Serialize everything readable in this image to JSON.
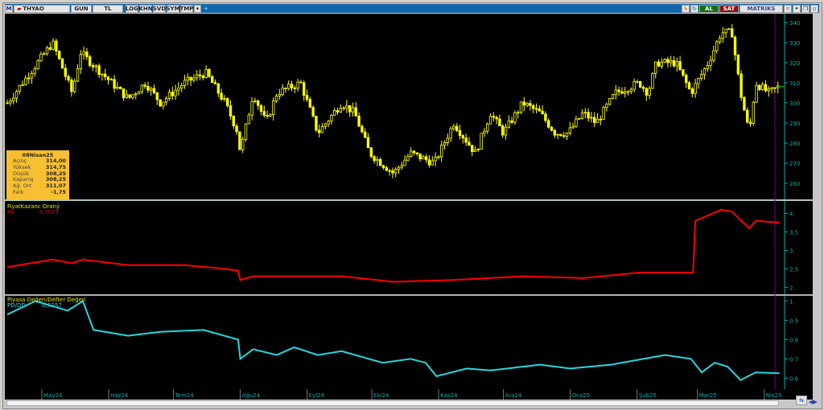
{
  "toolbar": {
    "logo": "M",
    "symbol": "THYAO",
    "period": "GUN",
    "currency": "TL",
    "buttons": [
      "LOG",
      "KHN",
      "SVD",
      "SYM",
      "TMP"
    ],
    "buy": "AL",
    "sell": "SAT",
    "brand": "MATRIKS"
  },
  "info_box": {
    "date": "08Nisan25",
    "rows": [
      {
        "label": "Açılış",
        "value": "314,00"
      },
      {
        "label": "Yüksek",
        "value": "314,75"
      },
      {
        "label": "Düşük",
        "value": "308,25"
      },
      {
        "label": "Kapanış",
        "value": "308,25"
      },
      {
        "label": "Ağ. Ort",
        "value": "311,07"
      },
      {
        "label": "Fark",
        "value": "-1,75"
      }
    ]
  },
  "colors": {
    "candle": "#ffff00",
    "fk": "#ff0000",
    "pddd": "#22d8e0",
    "axis": "#00b0b0",
    "background": "#000000"
  },
  "chart_data": [
    {
      "type": "candlestick",
      "symbol": "THYAO",
      "yticks": [
        260,
        270,
        280,
        290,
        300,
        310,
        320,
        330,
        340
      ],
      "ylim": [
        254,
        345
      ],
      "closes": [
        [
          "2024-04-15",
          300
        ],
        [
          "2024-05-06",
          330
        ],
        [
          "2024-05-15",
          305
        ],
        [
          "2024-05-19",
          325
        ],
        [
          "2024-06-10",
          302
        ],
        [
          "2024-06-18",
          310
        ],
        [
          "2024-06-25",
          300
        ],
        [
          "2024-07-06",
          310
        ],
        [
          "2024-07-16",
          315
        ],
        [
          "2024-07-25",
          300
        ],
        [
          "2024-07-31",
          285
        ],
        [
          "2024-08-01",
          275
        ],
        [
          "2024-08-07",
          305
        ],
        [
          "2024-08-13",
          290
        ],
        [
          "2024-08-18",
          305
        ],
        [
          "2024-08-29",
          310
        ],
        [
          "2024-09-06",
          285
        ],
        [
          "2024-09-17",
          300
        ],
        [
          "2024-09-23",
          295
        ],
        [
          "2024-09-30",
          275
        ],
        [
          "2024-10-11",
          265
        ],
        [
          "2024-10-19",
          275
        ],
        [
          "2024-10-30",
          270
        ],
        [
          "2024-11-08",
          290
        ],
        [
          "2024-11-18",
          275
        ],
        [
          "2024-11-25",
          295
        ],
        [
          "2024-12-01",
          285
        ],
        [
          "2024-12-10",
          300
        ],
        [
          "2024-12-18",
          295
        ],
        [
          "2024-12-25",
          285
        ],
        [
          "2024-12-31",
          285
        ],
        [
          "2025-01-07",
          295
        ],
        [
          "2025-01-13",
          290
        ],
        [
          "2025-01-22",
          305
        ],
        [
          "2025-02-02",
          310
        ],
        [
          "2025-02-06",
          305
        ],
        [
          "2025-02-10",
          320
        ],
        [
          "2025-02-19",
          320
        ],
        [
          "2025-02-26",
          305
        ],
        [
          "2025-03-06",
          320
        ],
        [
          "2025-03-12",
          335
        ],
        [
          "2025-03-17",
          335
        ],
        [
          "2025-03-21",
          305
        ],
        [
          "2025-03-25",
          285
        ],
        [
          "2025-03-28",
          310
        ],
        [
          "2025-04-03",
          305
        ],
        [
          "2025-04-08",
          308.25
        ]
      ]
    },
    {
      "type": "line",
      "title": "FiyatKazanc Oraný",
      "series_label": "FK",
      "last_value": ":3,7519",
      "yticks": [
        "2.",
        "2,5",
        "3.",
        "3,5",
        "4."
      ],
      "ytick_values": [
        2,
        2.5,
        3,
        3.5,
        4
      ],
      "ylim": [
        1.9,
        4.25
      ],
      "points": [
        [
          "2024-04-15",
          2.55
        ],
        [
          "2024-05-06",
          2.75
        ],
        [
          "2024-05-15",
          2.65
        ],
        [
          "2024-05-20",
          2.75
        ],
        [
          "2024-06-10",
          2.6
        ],
        [
          "2024-07-06",
          2.6
        ],
        [
          "2024-07-25",
          2.5
        ],
        [
          "2024-07-31",
          2.45
        ],
        [
          "2024-08-01",
          2.2
        ],
        [
          "2024-08-07",
          2.3
        ],
        [
          "2024-08-29",
          2.3
        ],
        [
          "2024-09-17",
          2.3
        ],
        [
          "2024-10-11",
          2.15
        ],
        [
          "2024-11-08",
          2.2
        ],
        [
          "2024-12-10",
          2.3
        ],
        [
          "2025-01-07",
          2.25
        ],
        [
          "2025-02-02",
          2.4
        ],
        [
          "2025-02-27",
          2.4
        ],
        [
          "2025-02-28",
          3.8
        ],
        [
          "2025-03-12",
          4.1
        ],
        [
          "2025-03-17",
          4.05
        ],
        [
          "2025-03-25",
          3.6
        ],
        [
          "2025-03-28",
          3.8
        ],
        [
          "2025-04-08",
          3.7519
        ]
      ]
    },
    {
      "type": "line",
      "title": "Piyasa Değeri/Defter Değeri",
      "series_label": "PD/DD",
      "last_value": ":0,6257",
      "yticks": [
        "0.6",
        "0.7",
        "0.8",
        "0.9",
        "1."
      ],
      "ytick_values": [
        0.6,
        0.7,
        0.8,
        0.9,
        1.0
      ],
      "ylim": [
        0.56,
        1.01
      ],
      "points": [
        [
          "2024-04-15",
          0.93
        ],
        [
          "2024-04-28",
          1.0
        ],
        [
          "2024-05-13",
          0.95
        ],
        [
          "2024-05-20",
          1.0
        ],
        [
          "2024-05-25",
          0.85
        ],
        [
          "2024-06-10",
          0.82
        ],
        [
          "2024-06-25",
          0.84
        ],
        [
          "2024-07-15",
          0.85
        ],
        [
          "2024-07-31",
          0.8
        ],
        [
          "2024-08-01",
          0.7
        ],
        [
          "2024-08-07",
          0.75
        ],
        [
          "2024-08-18",
          0.72
        ],
        [
          "2024-08-26",
          0.76
        ],
        [
          "2024-09-06",
          0.72
        ],
        [
          "2024-09-17",
          0.74
        ],
        [
          "2024-10-06",
          0.68
        ],
        [
          "2024-10-19",
          0.7
        ],
        [
          "2024-10-26",
          0.68
        ],
        [
          "2024-10-31",
          0.61
        ],
        [
          "2024-11-14",
          0.65
        ],
        [
          "2024-11-25",
          0.64
        ],
        [
          "2024-12-18",
          0.67
        ],
        [
          "2025-01-01",
          0.65
        ],
        [
          "2025-01-20",
          0.67
        ],
        [
          "2025-02-04",
          0.7
        ],
        [
          "2025-02-14",
          0.72
        ],
        [
          "2025-02-26",
          0.7
        ],
        [
          "2025-03-03",
          0.63
        ],
        [
          "2025-03-09",
          0.68
        ],
        [
          "2025-03-15",
          0.66
        ],
        [
          "2025-03-21",
          0.59
        ],
        [
          "2025-03-28",
          0.63
        ],
        [
          "2025-04-08",
          0.6257
        ]
      ]
    }
  ],
  "x_axis": {
    "months": [
      [
        "2024-05-01",
        "May24"
      ],
      [
        "2024-06-01",
        "Haz24"
      ],
      [
        "2024-07-01",
        "Tem24"
      ],
      [
        "2024-08-01",
        "Ağu24"
      ],
      [
        "2024-09-01",
        "Eyl24"
      ],
      [
        "2024-10-01",
        "Eki24"
      ],
      [
        "2024-11-01",
        "Kas24"
      ],
      [
        "2024-12-01",
        "Ara24"
      ],
      [
        "2025-01-01",
        "Oca25"
      ],
      [
        "2025-02-01",
        "Şub25"
      ],
      [
        "2025-03-01",
        "Mar25"
      ],
      [
        "2025-04-01",
        "Nis25"
      ]
    ]
  }
}
